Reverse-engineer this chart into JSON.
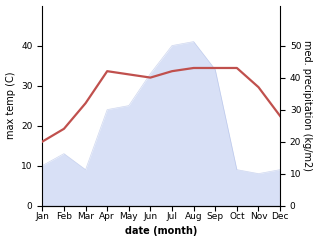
{
  "months": [
    "Jan",
    "Feb",
    "Mar",
    "Apr",
    "May",
    "Jun",
    "Jul",
    "Aug",
    "Sep",
    "Oct",
    "Nov",
    "Dec"
  ],
  "month_x": [
    1,
    2,
    3,
    4,
    5,
    6,
    7,
    8,
    9,
    10,
    11,
    12
  ],
  "precipitation": [
    10,
    13,
    9,
    24,
    25,
    33,
    40,
    41,
    34,
    9,
    8,
    9
  ],
  "temperature": [
    20,
    24,
    32,
    42,
    41,
    40,
    42,
    43,
    43,
    43,
    37,
    28
  ],
  "precip_color_fill": "#b8c8f0",
  "precip_color_line": "#a0b0e0",
  "temp_color": "#c0504d",
  "precip_alpha": 0.55,
  "left_ylim": [
    0,
    50
  ],
  "right_ylim": [
    0,
    62.5
  ],
  "left_yticks": [
    0,
    10,
    20,
    30,
    40
  ],
  "right_yticks": [
    0,
    10,
    20,
    30,
    40,
    50
  ],
  "xlabel": "date (month)",
  "ylabel_left": "max temp (C)",
  "ylabel_right": "med. precipitation (kg/m2)",
  "bg_color": "#ffffff",
  "temp_linewidth": 1.6,
  "xlabel_fontsize": 7,
  "ylabel_fontsize": 7,
  "tick_fontsize": 6.5
}
